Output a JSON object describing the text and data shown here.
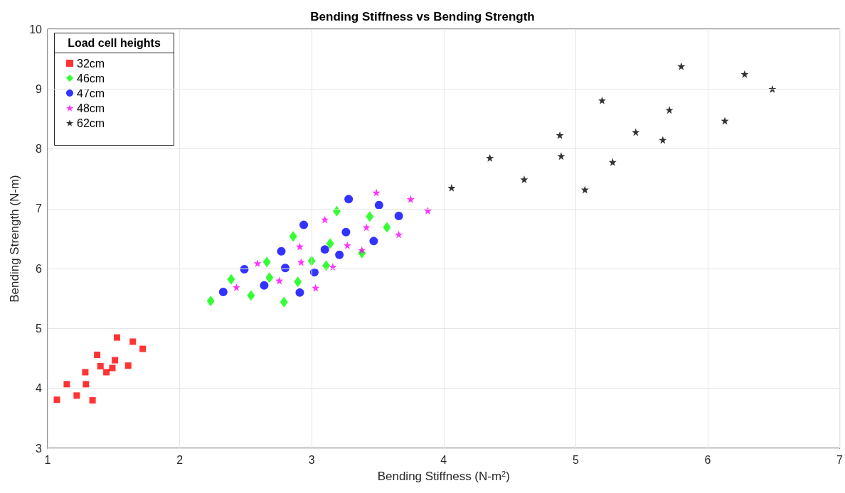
{
  "chart_data": {
    "type": "scatter",
    "title": "Bending Stiffness vs Bending Strength",
    "xlabel": "Bending Stiffness (N-m$^{2}$)",
    "ylabel": "Bending Strength (N-m)",
    "legend_title": "Load cell heights",
    "legend": "top left",
    "grid": true,
    "xlim": [
      1,
      7
    ],
    "xticks": [
      1,
      2,
      3,
      4,
      5,
      6,
      7
    ],
    "ylim": [
      3,
      10
    ],
    "yticks": [
      3,
      4,
      5,
      6,
      7,
      8,
      9,
      10
    ],
    "series": [
      {
        "name": "32cm",
        "color": "#ff0000",
        "marker": "square",
        "x": [
          1.07,
          1.145,
          1.22,
          1.285,
          1.29,
          1.34,
          1.375,
          1.4,
          1.445,
          1.49,
          1.51,
          1.525,
          1.61,
          1.645,
          1.72
        ],
        "values": [
          3.81,
          4.07,
          3.88,
          4.27,
          4.07,
          3.8,
          4.56,
          4.37,
          4.27,
          4.34,
          4.47,
          4.85,
          4.38,
          4.78,
          4.66
        ]
      },
      {
        "name": "46cm",
        "color": "#00ff00",
        "marker": "diamond",
        "x": [
          2.235,
          2.39,
          2.54,
          2.66,
          2.68,
          2.79,
          2.86,
          2.895,
          3.0,
          3.11,
          3.14,
          3.19,
          3.38,
          3.44,
          3.57
        ],
        "values": [
          5.46,
          5.82,
          5.55,
          6.11,
          5.85,
          5.44,
          6.54,
          5.78,
          6.13,
          6.05,
          6.42,
          6.96,
          6.26,
          6.87,
          6.69
        ]
      },
      {
        "name": "47cm",
        "color": "#0000ff",
        "marker": "circle",
        "x": [
          2.33,
          2.49,
          2.64,
          2.77,
          2.8,
          2.91,
          2.94,
          3.02,
          3.1,
          3.21,
          3.26,
          3.28,
          3.47,
          3.51,
          3.66
        ],
        "values": [
          5.61,
          5.99,
          5.72,
          6.29,
          6.01,
          5.6,
          6.73,
          5.94,
          6.32,
          6.23,
          6.61,
          7.16,
          6.46,
          7.06,
          6.88
        ]
      },
      {
        "name": "48cm",
        "color": "#ff00ff",
        "marker": "star",
        "x": [
          2.43,
          2.59,
          2.755,
          2.91,
          2.92,
          3.03,
          3.1,
          3.16,
          3.27,
          3.38,
          3.415,
          3.49,
          3.66,
          3.75,
          3.88
        ],
        "values": [
          5.69,
          6.09,
          5.8,
          6.37,
          6.11,
          5.68,
          6.82,
          6.03,
          6.39,
          6.31,
          6.69,
          7.27,
          6.57,
          7.16,
          6.97
        ]
      },
      {
        "name": "62cm",
        "color": "#000000",
        "marker": "star",
        "x": [
          4.06,
          4.35,
          4.61,
          4.88,
          4.89,
          5.07,
          5.2,
          5.28,
          5.455,
          5.66,
          5.71,
          5.8,
          6.13,
          6.28,
          6.49
        ],
        "values": [
          7.35,
          7.85,
          7.49,
          8.23,
          7.88,
          7.32,
          8.81,
          7.78,
          8.28,
          8.15,
          8.65,
          9.38,
          8.47,
          9.25,
          9.0
        ]
      }
    ]
  }
}
